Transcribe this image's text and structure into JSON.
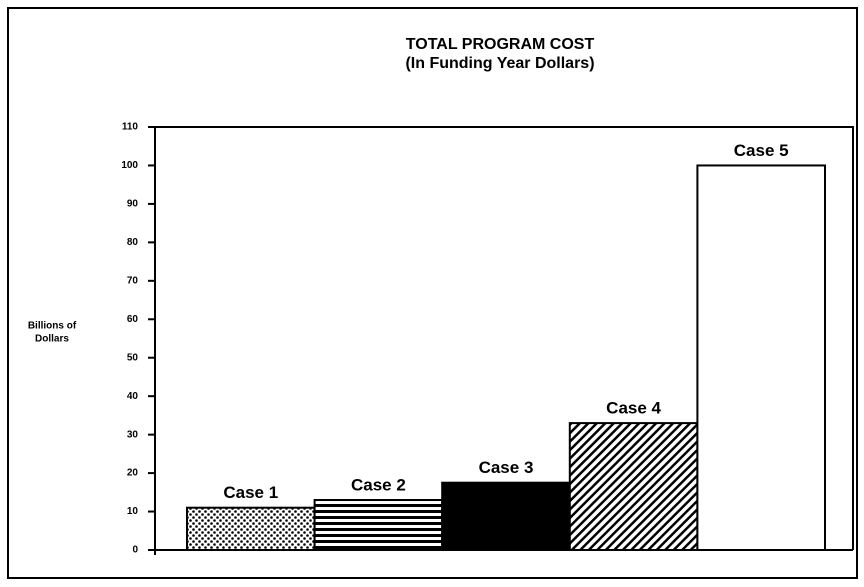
{
  "chart_data": {
    "type": "bar",
    "title": [
      "TOTAL PROGRAM COST",
      "(In Funding Year Dollars)"
    ],
    "ylabel": [
      "Billions of",
      "Dollars"
    ],
    "categories": [
      "Case 1",
      "Case 2",
      "Case 3",
      "Case 4",
      "Case 5"
    ],
    "values": [
      11,
      13,
      17.5,
      33,
      100
    ],
    "patterns": [
      "dots",
      "hlines",
      "solid",
      "hatch",
      "none"
    ],
    "color": "#000000",
    "ylim": [
      0,
      110
    ],
    "yticks": [
      0,
      10,
      20,
      30,
      40,
      50,
      60,
      70,
      80,
      90,
      100,
      110
    ],
    "grid": false
  }
}
